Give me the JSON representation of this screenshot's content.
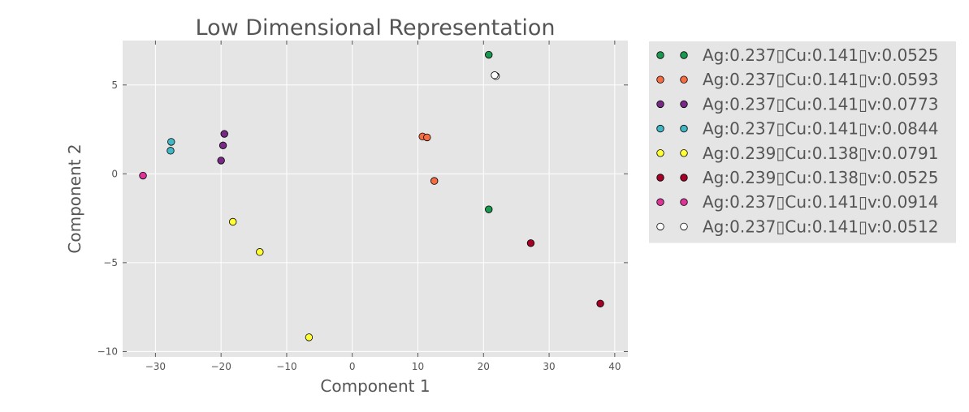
{
  "chart_data": {
    "type": "scatter",
    "title": "Low Dimensional Representation",
    "xlabel": "Component 1",
    "ylabel": "Component 2",
    "xlim": [
      -35,
      42
    ],
    "ylim": [
      -10.3,
      7.5
    ],
    "xticks": [
      -30,
      -20,
      -10,
      0,
      10,
      20,
      30,
      40
    ],
    "xtick_labels": [
      "−30",
      "−20",
      "−10",
      "0",
      "10",
      "20",
      "30",
      "40"
    ],
    "yticks": [
      -10,
      -5,
      0,
      5
    ],
    "ytick_labels": [
      "−10",
      "−5",
      "0",
      "5"
    ],
    "grid": true,
    "legend_placement": "outside-right-top",
    "series": [
      {
        "name": "Ag:0.237▯Cu:0.141▯v:0.0525",
        "color": "#1a9850",
        "points": [
          [
            20.8,
            6.7
          ],
          [
            20.8,
            -2.0
          ]
        ]
      },
      {
        "name": "Ag:0.237▯Cu:0.141▯v:0.0593",
        "color": "#f46d43",
        "points": [
          [
            10.7,
            2.1
          ],
          [
            11.4,
            2.05
          ],
          [
            12.5,
            -0.4
          ]
        ]
      },
      {
        "name": "Ag:0.237▯Cu:0.141▯v:0.0773",
        "color": "#762a83",
        "points": [
          [
            -19.5,
            2.25
          ],
          [
            -19.7,
            1.6
          ],
          [
            -20.0,
            0.75
          ]
        ]
      },
      {
        "name": "Ag:0.237▯Cu:0.141▯v:0.0844",
        "color": "#41b6c4",
        "points": [
          [
            -27.6,
            1.8
          ],
          [
            -27.7,
            1.3
          ]
        ]
      },
      {
        "name": "Ag:0.239▯Cu:0.138▯v:0.0791",
        "color": "#ffff33",
        "points": [
          [
            -18.2,
            -2.7
          ],
          [
            -14.1,
            -4.4
          ],
          [
            -6.6,
            -9.2
          ]
        ]
      },
      {
        "name": "Ag:0.239▯Cu:0.138▯v:0.0525",
        "color": "#a50026",
        "points": [
          [
            27.2,
            -3.9
          ],
          [
            37.8,
            -7.3
          ]
        ]
      },
      {
        "name": "Ag:0.237▯Cu:0.141▯v:0.0914",
        "color": "#dd3497",
        "points": [
          [
            -31.9,
            -0.1
          ]
        ]
      },
      {
        "name": "Ag:0.237▯Cu:0.141▯v:0.0512",
        "color": "#ffffff",
        "points": [
          [
            21.9,
            5.5
          ],
          [
            21.7,
            5.55
          ]
        ]
      }
    ]
  },
  "colors": {
    "plot_background": "#e5e5e5",
    "grid": "#ffffff",
    "text": "#555555",
    "marker_edge": "#000000"
  }
}
